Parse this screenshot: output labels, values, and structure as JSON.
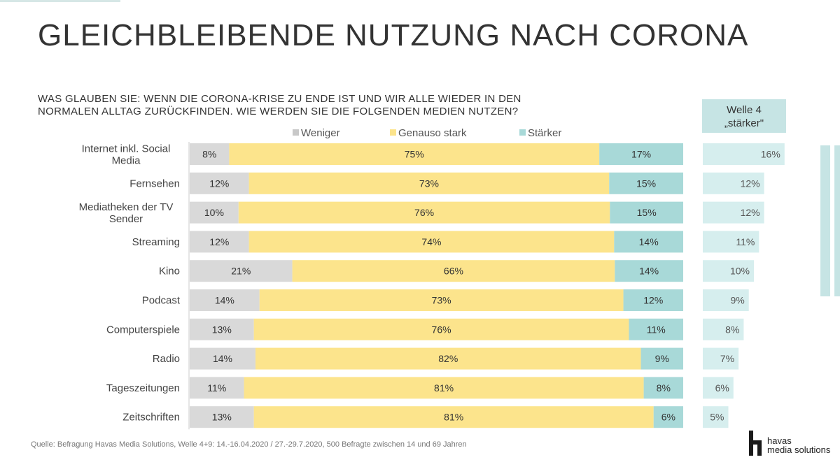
{
  "title": "GLEICHBLEIBENDE NUTZUNG NACH CORONA",
  "question": {
    "line1": "WAS GLAUBEN SIE: WENN DIE CORONA-KRISE ZU ENDE IST UND WIR ALLE WIEDER IN DEN",
    "line2": "NORMALEN ALLTAG ZURÜCKFINDEN. WIE WERDEN SIE DIE FOLGENDEN MEDIEN NUTZEN?"
  },
  "wave_header": {
    "line1": "Welle 4",
    "line2": "„stärker\""
  },
  "footer": "Quelle: Befragung Havas Media Solutions, Welle 4+9: 14.-16.04.2020 / 27.-29.7.2020, 500 Befragte zwischen 14 und 69 Jahren",
  "logo": {
    "line1": "havas",
    "line2": "media solutions"
  },
  "colors": {
    "weniger": "#d9d9d9",
    "genauso": "#fce48c",
    "staerker": "#a8d9d8",
    "wave": "#d6eeee",
    "text": "#333333"
  },
  "chart_data": [
    {
      "type": "bar",
      "orientation": "horizontal",
      "stacked": true,
      "normalized": true,
      "title": "Wie werden Sie die folgenden Medien nutzen?",
      "categories": [
        "Internet inkl. Social Media",
        "Fernsehen",
        "Mediatheken der TV Sender",
        "Streaming",
        "Kino",
        "Podcast",
        "Computerspiele",
        "Radio",
        "Tageszeitungen",
        "Zeitschriften"
      ],
      "series": [
        {
          "name": "Weniger",
          "color": "#d9d9d9",
          "values": [
            8,
            12,
            10,
            12,
            21,
            14,
            13,
            14,
            11,
            13
          ]
        },
        {
          "name": "Genauso stark",
          "color": "#fce48c",
          "values": [
            75,
            73,
            76,
            74,
            66,
            73,
            76,
            82,
            81,
            81
          ]
        },
        {
          "name": "Stärker",
          "color": "#a8d9d8",
          "values": [
            17,
            15,
            15,
            14,
            14,
            12,
            11,
            9,
            8,
            6
          ]
        }
      ],
      "value_suffix": "%",
      "legend_position": "top"
    },
    {
      "type": "bar",
      "orientation": "horizontal",
      "title": "Welle 4 „stärker\"",
      "categories": [
        "Internet inkl. Social Media",
        "Fernsehen",
        "Mediatheken der TV Sender",
        "Streaming",
        "Kino",
        "Podcast",
        "Computerspiele",
        "Radio",
        "Tageszeitungen",
        "Zeitschriften"
      ],
      "values": [
        16,
        12,
        12,
        11,
        10,
        9,
        8,
        7,
        6,
        5
      ],
      "value_suffix": "%"
    }
  ]
}
